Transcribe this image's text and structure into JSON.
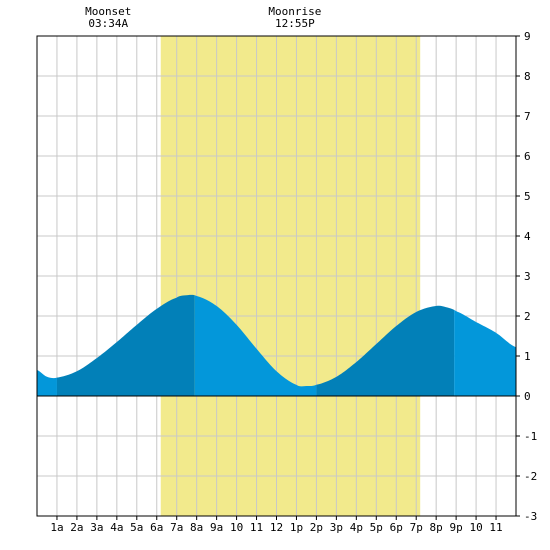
{
  "chart_data": {
    "type": "area",
    "title": "",
    "xlabel": "",
    "ylabel": "",
    "xlim": [
      0,
      24
    ],
    "ylim": [
      -3,
      9
    ],
    "grid": true,
    "x_tick_labels": [
      "1a",
      "2a",
      "3a",
      "4a",
      "5a",
      "6a",
      "7a",
      "8a",
      "9a",
      "10",
      "11",
      "12",
      "1p",
      "2p",
      "3p",
      "4p",
      "5p",
      "6p",
      "7p",
      "8p",
      "9p",
      "10",
      "11"
    ],
    "x_tick_values": [
      1,
      2,
      3,
      4,
      5,
      6,
      7,
      8,
      9,
      10,
      11,
      12,
      13,
      14,
      15,
      16,
      17,
      18,
      19,
      20,
      21,
      22,
      23
    ],
    "y_tick_values": [
      -3,
      -2,
      -1,
      0,
      1,
      2,
      3,
      4,
      5,
      6,
      7,
      8,
      9
    ],
    "daylight": {
      "start": 6.2,
      "end": 19.2
    },
    "series": [
      {
        "x": [
          0,
          0.5,
          1,
          2,
          3,
          4,
          5,
          6,
          7,
          7.5,
          8,
          9,
          10,
          11,
          12,
          13,
          13.5,
          14,
          15,
          16,
          17,
          18,
          19,
          20,
          20.5,
          21,
          22,
          23,
          24
        ],
        "values": [
          0.65,
          0.48,
          0.46,
          0.62,
          0.95,
          1.35,
          1.78,
          2.18,
          2.46,
          2.52,
          2.5,
          2.25,
          1.78,
          1.18,
          0.62,
          0.28,
          0.25,
          0.28,
          0.48,
          0.85,
          1.3,
          1.75,
          2.1,
          2.25,
          2.22,
          2.12,
          1.85,
          1.58,
          1.22
        ]
      }
    ],
    "extrema_x": [
      1.0,
      7.9,
      14.0,
      20.9
    ],
    "annotations": [
      {
        "id": "moonset",
        "title": "Moonset",
        "time": "03:34A",
        "x": 3.57
      },
      {
        "id": "moonrise",
        "title": "Moonrise",
        "time": "12:55P",
        "x": 12.92
      }
    ]
  },
  "colors": {
    "daylight": "#f2ea8c",
    "tide_light": "#0397da",
    "tide_dark": "#0280b8",
    "grid": "#c8c8c8",
    "axis": "#000000"
  }
}
